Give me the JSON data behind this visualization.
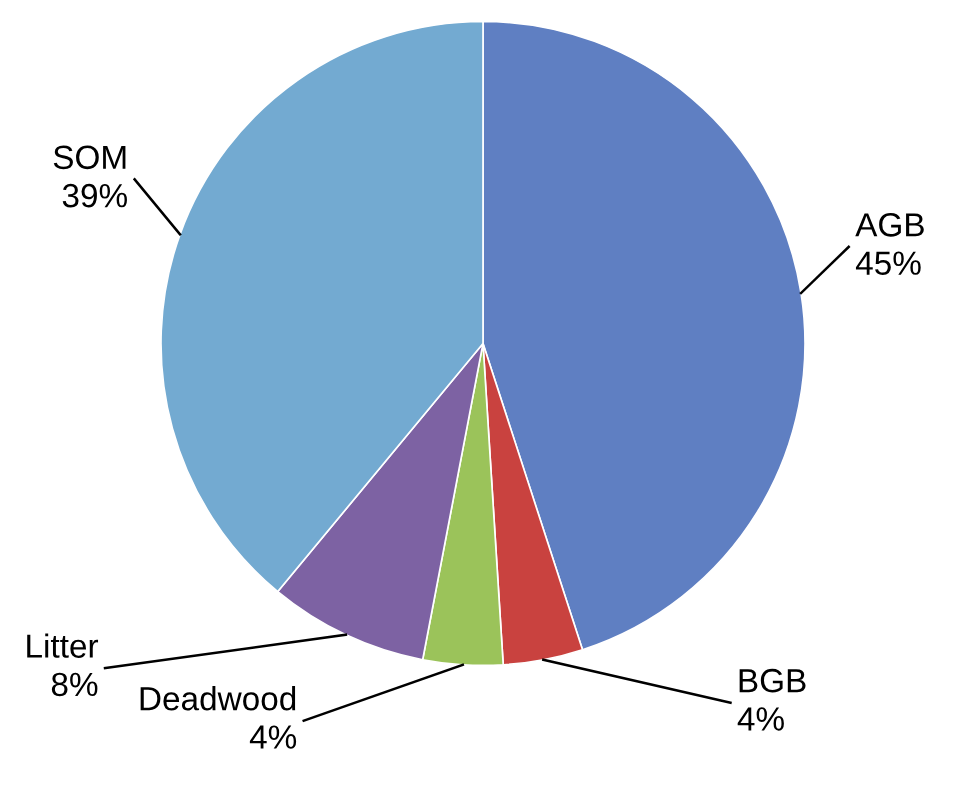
{
  "chart_data": {
    "type": "pie",
    "categories": [
      "AGB",
      "BGB",
      "Deadwood",
      "Litter",
      "SOM"
    ],
    "values": [
      45,
      4,
      4,
      8,
      39
    ],
    "value_labels": [
      "45%",
      "4%",
      "4%",
      "8%",
      "39%"
    ],
    "colors": [
      "#5f7fc2",
      "#c9423f",
      "#9bc35a",
      "#7d62a3",
      "#73aad1"
    ]
  }
}
